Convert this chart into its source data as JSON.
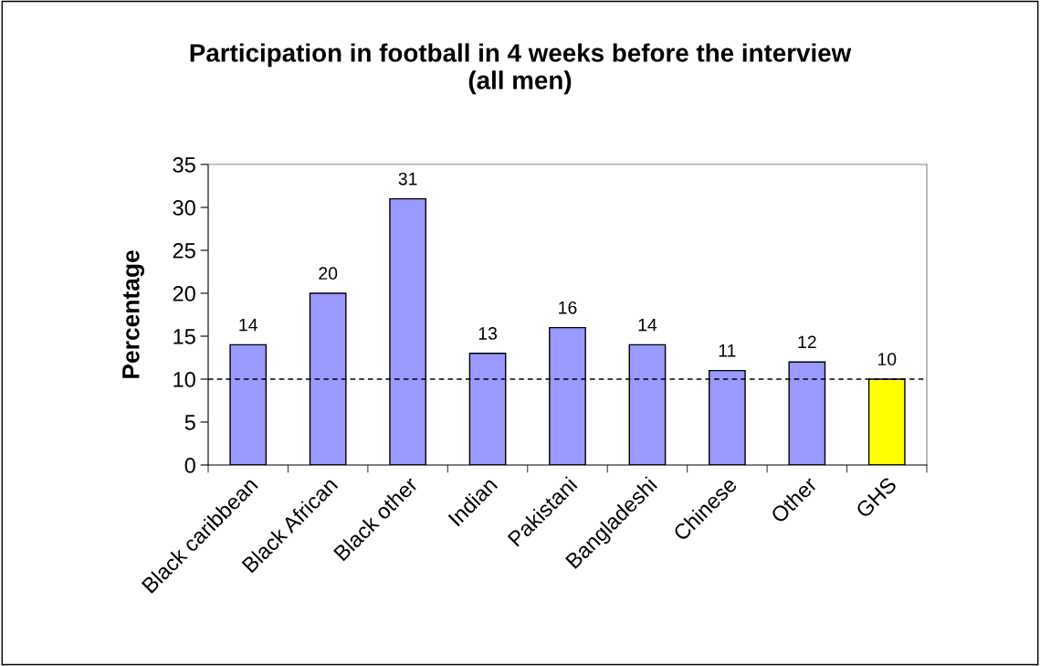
{
  "chart_data": {
    "type": "bar",
    "title": "Participation in football in 4 weeks before the interview\n(all men)",
    "ylabel": "Percentage",
    "categories": [
      "Black caribbean",
      "Black African",
      "Black other",
      "Indian",
      "Pakistani",
      "Bangladeshi",
      "Chinese",
      "Other",
      "GHS"
    ],
    "values": [
      14,
      20,
      31,
      13,
      16,
      14,
      11,
      12,
      10
    ],
    "colors": [
      "#9999ff",
      "#9999ff",
      "#9999ff",
      "#9999ff",
      "#9999ff",
      "#9999ff",
      "#9999ff",
      "#9999ff",
      "#ffff00"
    ],
    "ylim": [
      0,
      35
    ],
    "yticks": [
      0,
      5,
      10,
      15,
      20,
      25,
      30,
      35
    ],
    "grid": false,
    "legend": false,
    "data_labels": true,
    "ref_lines": [
      {
        "axis": "y",
        "value": 10,
        "color": "#000000",
        "line_style": "dashed"
      }
    ]
  }
}
